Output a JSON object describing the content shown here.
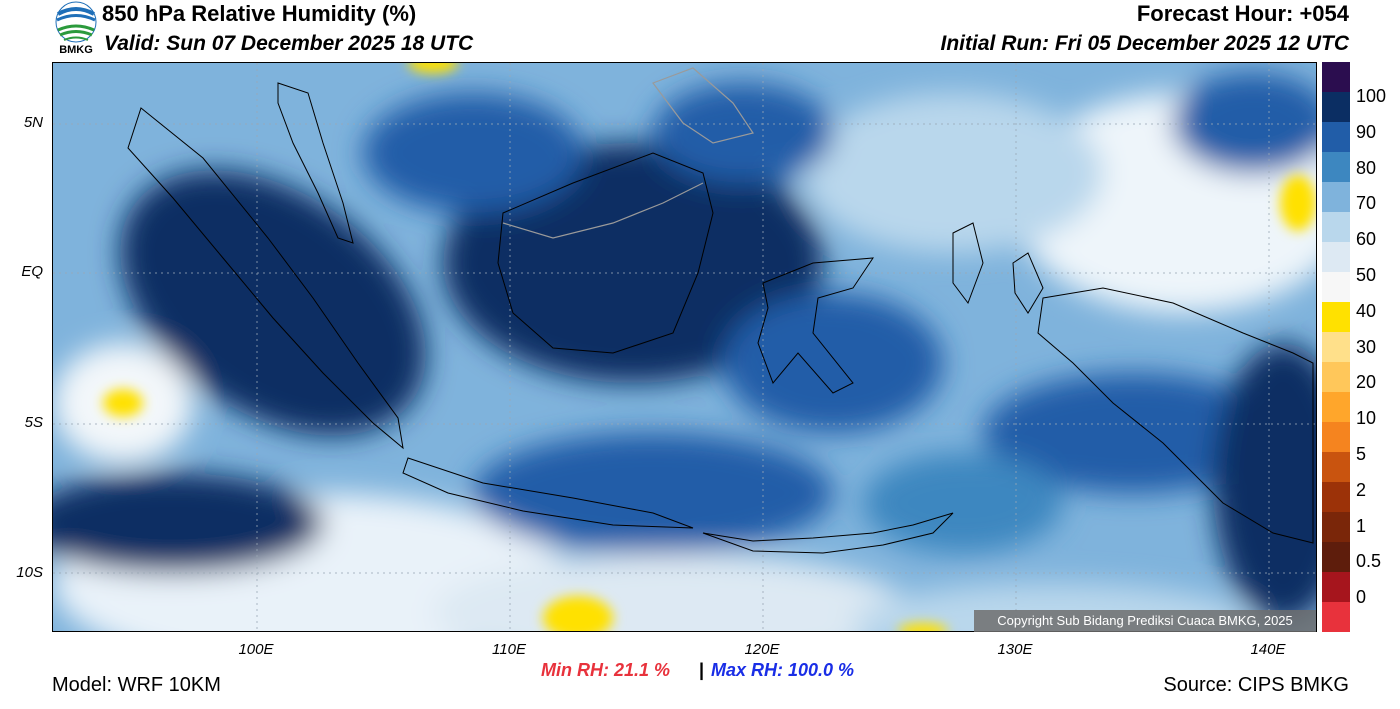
{
  "header": {
    "title": "850 hPa Relative Humidity (%)",
    "valid": "Valid: Sun 07 December 2025 18 UTC",
    "forecast_hour": "Forecast Hour: +054",
    "initial_run": "Initial Run: Fri 05 December 2025 12 UTC",
    "logo_text": "BMKG"
  },
  "map": {
    "y_labels": [
      "5N",
      "EQ",
      "5S",
      "10S"
    ],
    "x_labels": [
      "100E",
      "110E",
      "120E",
      "130E",
      "140E"
    ],
    "copyright": "Copyright Sub Bidang Prediksi Cuaca BMKG, 2025"
  },
  "colorbar": {
    "labels": [
      "100",
      "90",
      "80",
      "70",
      "60",
      "50",
      "40",
      "30",
      "20",
      "10",
      "5",
      "2",
      "1",
      "0.5",
      "0"
    ],
    "colors": [
      "#2b0d4f",
      "#0b2e63",
      "#215da8",
      "#3d87c0",
      "#7fb3dc",
      "#b9d7ec",
      "#dde9f3",
      "#f7f7f7",
      "#ffe100",
      "#ffe08a",
      "#ffc75a",
      "#ffa62b",
      "#f5841f",
      "#c9540f",
      "#9c3208",
      "#7a2609",
      "#5e1d0c",
      "#a6151d",
      "#e8323c"
    ]
  },
  "stats": {
    "min_rh": "Min RH:  21.1 %",
    "separator": "|",
    "max_rh": "Max RH: 100.0 %"
  },
  "footer": {
    "model": "Model: WRF 10KM",
    "source": "Source: CIPS BMKG"
  }
}
